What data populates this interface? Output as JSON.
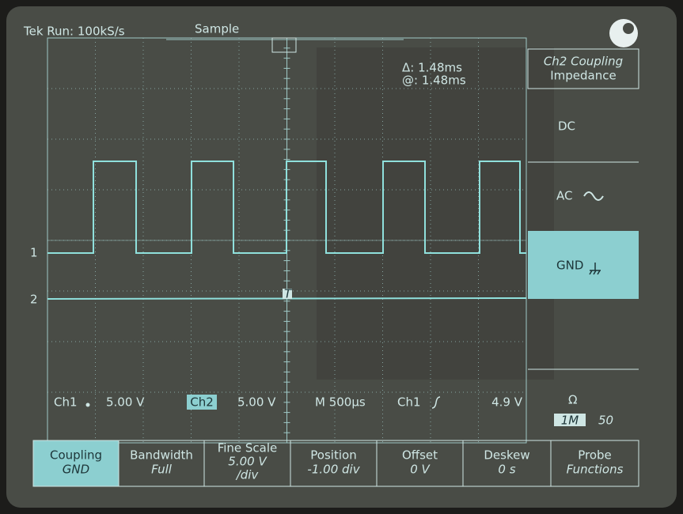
{
  "header": {
    "status": "Tek Run: 100kS/s",
    "mode": "Sample",
    "trigger_marker": "T"
  },
  "cursor": {
    "delta": "Δ: 1.48ms",
    "at": "@: 1.48ms"
  },
  "channel_markers": [
    "1",
    "2"
  ],
  "side_menu": {
    "title": "Ch2 Coupling",
    "subtitle": "Impedance",
    "options": [
      "DC",
      "AC",
      "GND"
    ],
    "impedance_symbol": "Ω",
    "impedance_options": [
      "1M",
      "50"
    ]
  },
  "status_bar": {
    "ch1_label": "Ch1",
    "ch1_scale": "5.00 V",
    "ch2_label": "Ch2",
    "ch2_scale": "5.00 V",
    "timebase": "M 500µs",
    "trigger_source": "Ch1",
    "trigger_level": "4.9 V"
  },
  "bottom_menu": [
    {
      "label": "Coupling",
      "value": "GND"
    },
    {
      "label": "Bandwidth",
      "value": "Full"
    },
    {
      "label": "Fine Scale",
      "value": "5.00 V",
      "value2": "/div"
    },
    {
      "label": "Position",
      "value": "-1.00 div"
    },
    {
      "label": "Offset",
      "value": "0 V"
    },
    {
      "label": "Deskew",
      "value": "0 s"
    },
    {
      "label": "Probe",
      "value": "Functions"
    }
  ]
}
